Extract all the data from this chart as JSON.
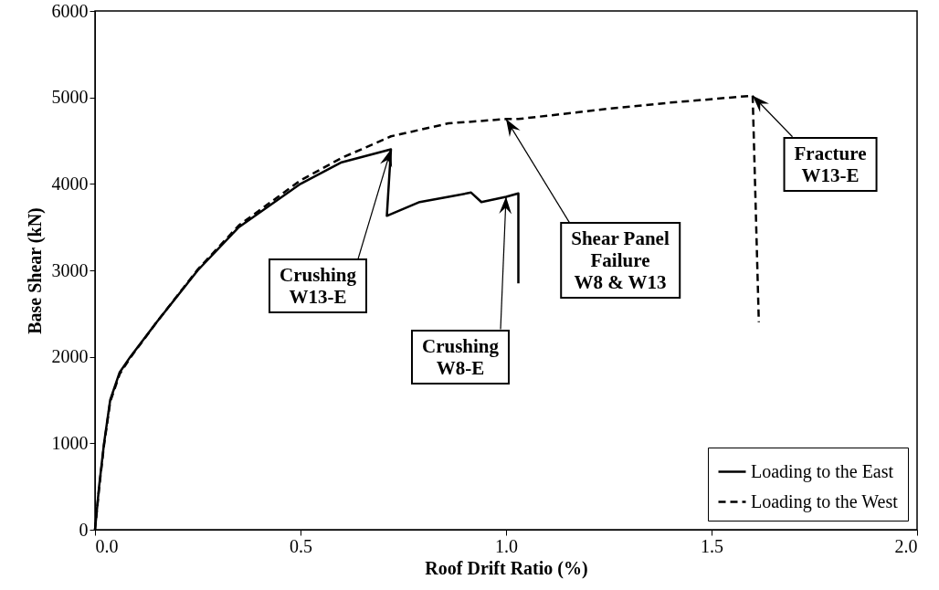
{
  "chart_data": {
    "type": "line",
    "xlabel": "Roof Drift Ratio (%)",
    "ylabel": "Base Shear (kN)",
    "xlim": [
      0,
      2
    ],
    "xticks": [
      {
        "value": 0,
        "label": "0.0"
      },
      {
        "value": 0.5,
        "label": "0.5"
      },
      {
        "value": 1,
        "label": "1.0"
      },
      {
        "value": 1.5,
        "label": "1.5"
      },
      {
        "value": 2,
        "label": "2.0"
      }
    ],
    "ylim": [
      0,
      6000
    ],
    "yticks": [
      0,
      1000,
      2000,
      3000,
      4000,
      5000,
      6000
    ],
    "grid": false,
    "legend": "bottom right",
    "marker": "none",
    "series": [
      {
        "name": "Loading to the East",
        "color": "#000000",
        "line_style": "solid",
        "x": [
          0,
          0.01,
          0.022,
          0.037,
          0.06,
          0.086,
          0.15,
          0.25,
          0.35,
          0.5,
          0.6,
          0.72,
          0.71,
          0.79,
          0.86,
          0.915,
          0.94,
          1.0,
          1.03,
          1.03
        ],
        "values": [
          0,
          500,
          1000,
          1500,
          1820,
          2000,
          2400,
          3000,
          3500,
          4000,
          4250,
          4400,
          3630,
          3790,
          3850,
          3900,
          3790,
          3850,
          3890,
          2850
        ]
      },
      {
        "name": "Loading to the West",
        "color": "#000000",
        "line_style": "dashed",
        "x": [
          0,
          0.01,
          0.022,
          0.037,
          0.06,
          0.086,
          0.15,
          0.25,
          0.35,
          0.5,
          0.6,
          0.72,
          0.86,
          1.0,
          1.03,
          1.25,
          1.4,
          1.6,
          1.615
        ],
        "values": [
          0,
          480,
          980,
          1480,
          1800,
          1990,
          2400,
          3010,
          3520,
          4040,
          4300,
          4550,
          4700,
          4750,
          4750,
          4870,
          4940,
          5020,
          2400
        ]
      }
    ],
    "annotations": [
      {
        "text": "Crushing\nW13-E",
        "x": 0.72,
        "y": 4400
      },
      {
        "text": "Crushing\nW8-E",
        "x": 1.0,
        "y": 3850
      },
      {
        "text": "Shear Panel\nFailure\nW8 & W13",
        "x": 1.0,
        "y": 4750
      },
      {
        "text": "Fracture\nW13-E",
        "x": 1.6,
        "y": 5020
      }
    ]
  }
}
